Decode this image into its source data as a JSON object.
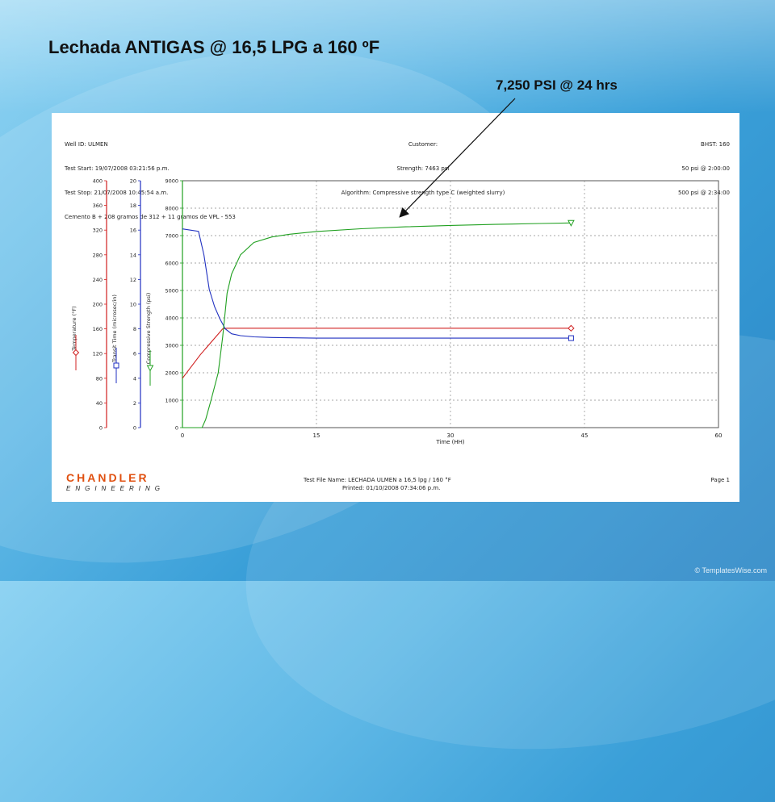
{
  "slide": {
    "title": "Lechada ANTIGAS @ 16,5 LPG a 160 ºF",
    "callout": "7,250 PSI @ 24 hrs",
    "watermark": "© TemplatesWise.com"
  },
  "report_header": {
    "left": [
      "Well ID: ULMEN",
      "Test Start: 19/07/2008 03:21:56 p.m.",
      "Test Stop: 21/07/2008 10:45:54 a.m.",
      "Cemento B + 208 gramos de 312 + 11 gramos de VPL - 553"
    ],
    "center": [
      "Customer:",
      "Strength: 7463 psi",
      "Algorithm: Compressive strength type C (weighted slurry)"
    ],
    "right": [
      "BHST: 160",
      "50 psi @ 2:00:00",
      "500 psi @ 2:34:00"
    ]
  },
  "footer": {
    "brand": "CHANDLER",
    "brand_sub": "ENGINEERING",
    "file_line": "Test File Name: LECHADA ULMEN a 16,5 lpg / 160 °F",
    "printed_line": "Printed: 01/10/2008 07:34:06 p.m.",
    "page": "Page 1"
  },
  "chart_data": {
    "type": "line",
    "xlabel": "Time (HH)",
    "xlim": [
      0,
      60
    ],
    "x_ticks": [
      0,
      15,
      30,
      45,
      60
    ],
    "grid": true,
    "axes": {
      "temperature": {
        "label": "Temperature (°F)",
        "lim": [
          0,
          400
        ],
        "ticks": [
          0,
          40,
          80,
          120,
          160,
          200,
          240,
          280,
          320,
          360,
          400
        ],
        "color": "#d02020"
      },
      "transit": {
        "label": "Transit Time (microsec/in)",
        "lim": [
          0,
          20
        ],
        "ticks": [
          0,
          2,
          4,
          6,
          8,
          10,
          12,
          14,
          16,
          18,
          20
        ],
        "color": "#2030c0"
      },
      "strength": {
        "label": "Compressive Strength (psi)",
        "lim": [
          0,
          9000
        ],
        "ticks": [
          0,
          1000,
          2000,
          3000,
          4000,
          5000,
          6000,
          7000,
          8000,
          9000
        ],
        "color": "#20a020"
      }
    },
    "series": [
      {
        "name": "Temperature",
        "axis": "temperature",
        "color": "#d02020",
        "marker": "diamond",
        "x": [
          0,
          2,
          4.5,
          5,
          10,
          20,
          30,
          43.5
        ],
        "y": [
          80,
          118,
          160,
          161,
          161,
          161,
          161,
          161
        ]
      },
      {
        "name": "Transit Time",
        "axis": "transit",
        "color": "#2030c0",
        "marker": "square",
        "x": [
          0,
          1.8,
          2.4,
          3,
          3.6,
          4.2,
          4.8,
          5.5,
          6.5,
          8,
          10,
          15,
          30,
          43.5
        ],
        "y": [
          16.1,
          15.9,
          14.0,
          11.2,
          9.8,
          8.8,
          8.0,
          7.6,
          7.45,
          7.35,
          7.3,
          7.25,
          7.25,
          7.25
        ]
      },
      {
        "name": "Compressive Strength",
        "axis": "strength",
        "color": "#20a020",
        "marker": "triangle",
        "x": [
          0,
          2.2,
          2.6,
          3.2,
          4,
          4.5,
          5,
          5.5,
          6.5,
          8,
          10,
          12,
          15,
          20,
          25,
          30,
          35,
          40,
          43.5
        ],
        "y": [
          0,
          0,
          300,
          1000,
          2000,
          3300,
          4900,
          5600,
          6300,
          6750,
          6950,
          7050,
          7150,
          7250,
          7320,
          7370,
          7410,
          7440,
          7463
        ]
      }
    ]
  }
}
